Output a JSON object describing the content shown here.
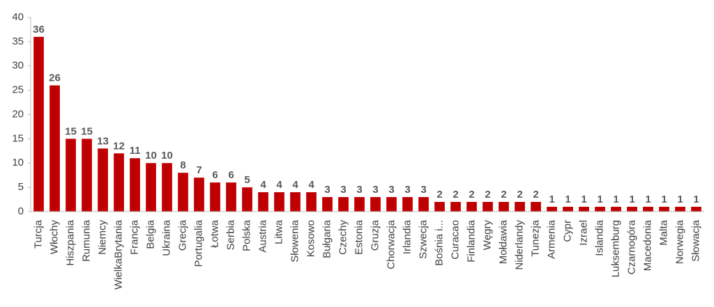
{
  "chart_data": {
    "type": "bar",
    "categories": [
      "Turcja",
      "Włochy",
      "Hiszpania",
      "Rumunia",
      "Niemcy",
      "WielkaBrytania",
      "Francja",
      "Belgia",
      "Ukraina",
      "Grecja",
      "Portugalia",
      "Łotwa",
      "Serbia",
      "Polska",
      "Austria",
      "Litwa",
      "Słowenia",
      "Kosowo",
      "Bułgaria",
      "Czechy",
      "Estonia",
      "Gruzja",
      "Chorwacja",
      "Irlandia",
      "Szwecja",
      "Bośnia i...",
      "Curacao",
      "Finlandia",
      "Węgry",
      "Mołdawia",
      "Niderlandy",
      "Tunezja",
      "Armenia",
      "Cypr",
      "Izrael",
      "Islandia",
      "Luksemburg",
      "Czarnogóra",
      "Macedonia",
      "Malta",
      "Norwegia",
      "Słowacja"
    ],
    "values": [
      36,
      26,
      15,
      15,
      13,
      12,
      11,
      10,
      10,
      8,
      7,
      6,
      6,
      5,
      4,
      4,
      4,
      4,
      3,
      3,
      3,
      3,
      3,
      3,
      3,
      2,
      2,
      2,
      2,
      2,
      2,
      2,
      1,
      1,
      1,
      1,
      1,
      1,
      1,
      1,
      1,
      1
    ],
    "color": "#c00000",
    "ylim": [
      0,
      40
    ],
    "yticks": [
      0,
      5,
      10,
      15,
      20,
      25,
      30,
      35,
      40
    ],
    "grid": false
  }
}
